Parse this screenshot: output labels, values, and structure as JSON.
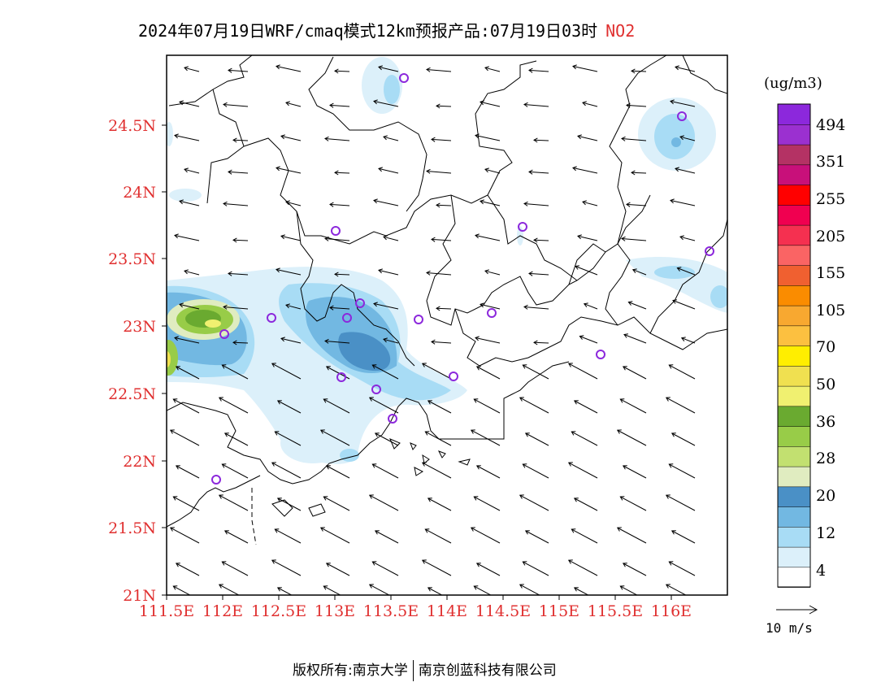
{
  "title": {
    "text": "2024年07月19日WRF/cmaq模式12km预报产品:07月19日03时",
    "species": "NO2"
  },
  "map": {
    "lat_ticks": [
      "24.5N",
      "24N",
      "23.5N",
      "23N",
      "22.5N",
      "22N",
      "21.5N",
      "21N"
    ],
    "lon_ticks": [
      "111.5E",
      "112E",
      "112.5E",
      "113E",
      "113.5E",
      "114E",
      "114.5E",
      "115E",
      "115.5E",
      "116E"
    ],
    "lat_range": [
      21,
      25
    ],
    "lon_range": [
      111.5,
      116.5
    ]
  },
  "colorbar": {
    "unit": "(ug/m3)",
    "labels": [
      "494",
      "351",
      "255",
      "205",
      "155",
      "105",
      "70",
      "50",
      "36",
      "28",
      "20",
      "12",
      "4"
    ],
    "colors": [
      "#ffffff",
      "#dcf0fa",
      "#a8dcf5",
      "#72b8e2",
      "#4a90c6",
      "#e0ecc0",
      "#c2e070",
      "#98cc48",
      "#6aaa30",
      "#f0f070",
      "#f0e050",
      "#ffee00",
      "#fcc040",
      "#f8a830",
      "#fa8c00",
      "#f06030",
      "#fa6464",
      "#f53050",
      "#f00050",
      "#ff0000",
      "#c8107a",
      "#b43264",
      "#9b30d0",
      "#8c28dc"
    ]
  },
  "reference_vector": {
    "label": "10 m/s"
  },
  "footer": {
    "copyright": "版权所有:南京大学",
    "company": "南京创蓝科技有限公司"
  }
}
